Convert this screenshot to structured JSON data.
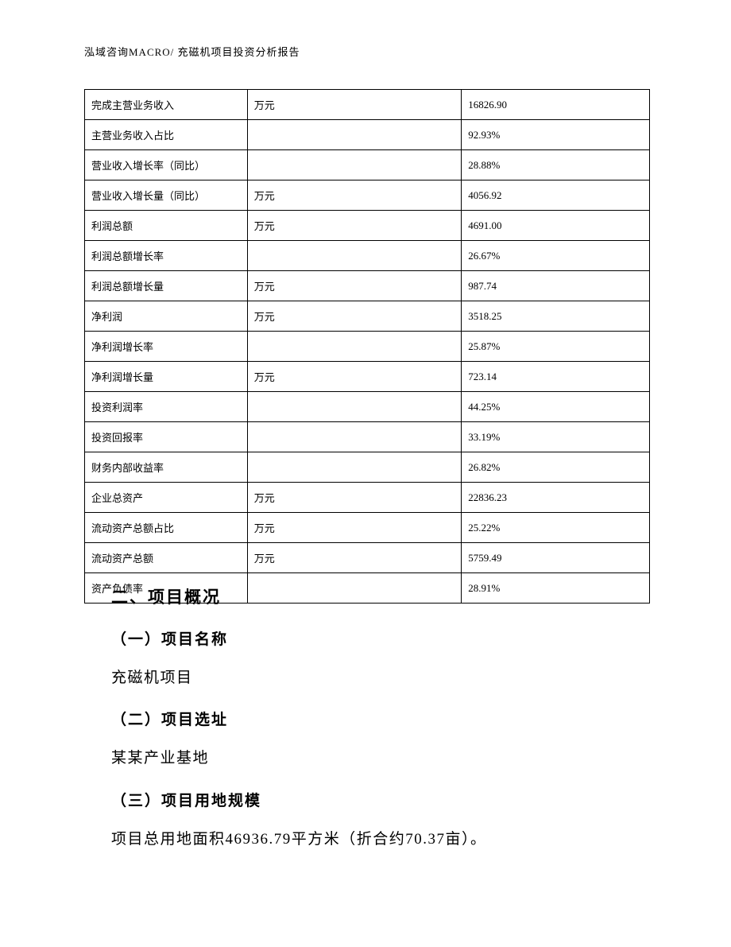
{
  "header": {
    "text": "泓域咨询MACRO/    充磁机项目投资分析报告"
  },
  "table": {
    "columns": {
      "col1_width": 205,
      "col2_width": 270,
      "col3_width": 237
    },
    "border_color": "#000000",
    "font_size": 13,
    "text_color": "#000000",
    "rows": [
      {
        "label": "完成主营业务收入",
        "unit": "万元",
        "value": "16826.90"
      },
      {
        "label": "主营业务收入占比",
        "unit": "",
        "value": "92.93%"
      },
      {
        "label": "营业收入增长率（同比）",
        "unit": "",
        "value": "28.88%"
      },
      {
        "label": "营业收入增长量（同比）",
        "unit": "万元",
        "value": "4056.92"
      },
      {
        "label": "利润总额",
        "unit": "万元",
        "value": "4691.00"
      },
      {
        "label": "利润总额增长率",
        "unit": "",
        "value": "26.67%"
      },
      {
        "label": "利润总额增长量",
        "unit": "万元",
        "value": "987.74"
      },
      {
        "label": "净利润",
        "unit": "万元",
        "value": "3518.25"
      },
      {
        "label": "净利润增长率",
        "unit": "",
        "value": "25.87%"
      },
      {
        "label": "净利润增长量",
        "unit": "万元",
        "value": "723.14"
      },
      {
        "label": "投资利润率",
        "unit": "",
        "value": "44.25%"
      },
      {
        "label": "投资回报率",
        "unit": "",
        "value": "33.19%"
      },
      {
        "label": "财务内部收益率",
        "unit": "",
        "value": "26.82%"
      },
      {
        "label": "企业总资产",
        "unit": "万元",
        "value": "22836.23"
      },
      {
        "label": "流动资产总额占比",
        "unit": "万元",
        "value": "25.22%"
      },
      {
        "label": "流动资产总额",
        "unit": "万元",
        "value": "5759.49"
      },
      {
        "label": "资产负债率",
        "unit": "",
        "value": "28.91%"
      }
    ]
  },
  "content": {
    "heading1": "二、项目概况",
    "section1": {
      "heading": "（一）项目名称",
      "text": "充磁机项目"
    },
    "section2": {
      "heading": "（二）项目选址",
      "text": "某某产业基地"
    },
    "section3": {
      "heading": "（三）项目用地规模",
      "text": "项目总用地面积46936.79平方米（折合约70.37亩）。"
    }
  },
  "styling": {
    "page_background": "#ffffff",
    "heading_font": "SimHei",
    "body_font": "SimSun",
    "heading1_fontsize": 21,
    "heading2_fontsize": 19,
    "body_fontsize": 19,
    "table_fontsize": 13,
    "header_fontsize": 13
  }
}
